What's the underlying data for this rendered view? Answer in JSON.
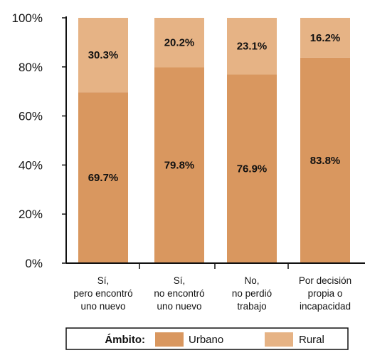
{
  "chart_data": {
    "type": "bar",
    "stacked": true,
    "percent_stacked": true,
    "categories": [
      [
        "Sí,",
        "pero encontró",
        "uno nuevo"
      ],
      [
        "Sí,",
        "no encontró",
        "uno nuevo"
      ],
      [
        "No,",
        "no perdió",
        "trabajo"
      ],
      [
        "Por decisión",
        "propia o",
        "incapacidad"
      ]
    ],
    "series": [
      {
        "name": "Urbano",
        "color": "#D9975F",
        "values": [
          69.7,
          79.8,
          76.9,
          83.8
        ],
        "labels": [
          "69.7%",
          "79.8%",
          "76.9%",
          "83.8%"
        ]
      },
      {
        "name": "Rural",
        "color": "#E6B385",
        "values": [
          30.3,
          20.2,
          23.1,
          16.2
        ],
        "labels": [
          "30.3%",
          "20.2%",
          "23.1%",
          "16.2%"
        ]
      }
    ],
    "ylim": [
      0,
      100
    ],
    "yticks": [
      0,
      20,
      40,
      60,
      80,
      100
    ],
    "ytick_labels": [
      "0%",
      "20%",
      "40%",
      "60%",
      "80%",
      "100%"
    ],
    "grid": false,
    "legend": {
      "title": "Ámbito:",
      "position": "bottom-center"
    }
  }
}
